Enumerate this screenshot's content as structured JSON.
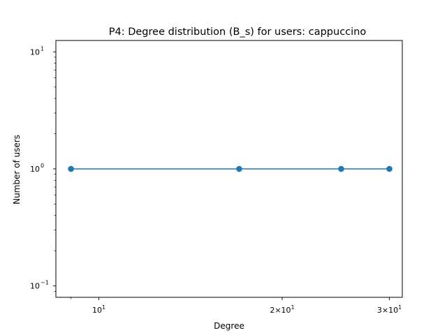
{
  "chart_data": {
    "type": "line",
    "title": "P4: Degree distribution (B_s) for users: cappuccino",
    "xlabel": "Degree",
    "ylabel": "Number of users",
    "xscale": "log",
    "yscale": "log",
    "xlim": [
      8.5,
      31.5
    ],
    "ylim": [
      0.08,
      12.5
    ],
    "x": [
      9,
      17,
      25,
      30
    ],
    "series": [
      {
        "values": [
          1,
          1,
          1,
          1
        ],
        "color": "#1f77b4",
        "marker": "circle"
      }
    ],
    "x_major_ticks": [
      {
        "value": 10,
        "base": "10",
        "exp": "1"
      },
      {
        "value": 20,
        "mant": "2",
        "base": "10",
        "exp": "1"
      },
      {
        "value": 30,
        "mant": "3",
        "base": "10",
        "exp": "1"
      }
    ],
    "x_minor_ticks": [
      9
    ],
    "y_major_ticks": [
      {
        "value": 0.1,
        "base": "10",
        "exp": "−1"
      },
      {
        "value": 1,
        "base": "10",
        "exp": "0"
      },
      {
        "value": 10,
        "base": "10",
        "exp": "1"
      }
    ],
    "y_minor_ticks": [
      0.09,
      0.2,
      0.3,
      0.4,
      0.5,
      0.6,
      0.7,
      0.8,
      0.9,
      2,
      3,
      4,
      5,
      6,
      7,
      8,
      9
    ],
    "grid": false,
    "legend": "none"
  }
}
